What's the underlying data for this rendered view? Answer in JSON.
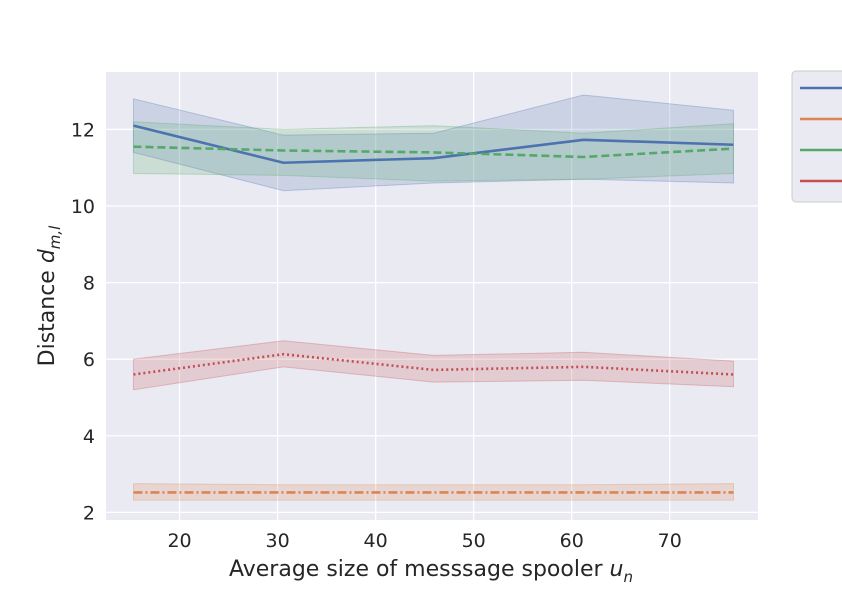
{
  "chart_data": {
    "type": "line",
    "title": "",
    "xlabel": "Average size of messsage spooler",
    "xlabel_math": "u",
    "xlabel_math_sub": "n",
    "ylabel": "Distance",
    "ylabel_math": "d",
    "ylabel_math_sub": "m,l",
    "xlim": [
      12.5,
      79
    ],
    "ylim": [
      1.8,
      13.5
    ],
    "xticks": [
      20,
      30,
      40,
      50,
      60,
      70
    ],
    "yticks": [
      2,
      4,
      6,
      8,
      10,
      12
    ],
    "grid": true,
    "legend_position": "outside-top-right",
    "x": [
      15.3,
      30.6,
      45.9,
      61.2,
      76.5
    ],
    "series": [
      {
        "color": "#4c72b0",
        "dash": "solid",
        "values": [
          12.1,
          11.13,
          11.25,
          11.73,
          11.6
        ],
        "lower": [
          11.4,
          10.4,
          10.6,
          10.7,
          10.6
        ],
        "upper": [
          12.8,
          11.85,
          11.9,
          12.9,
          12.5
        ]
      },
      {
        "color": "#dd8452",
        "dash": "dashdot",
        "values": [
          2.52,
          2.52,
          2.52,
          2.52,
          2.52
        ],
        "lower": [
          2.32,
          2.32,
          2.32,
          2.32,
          2.32
        ],
        "upper": [
          2.75,
          2.72,
          2.72,
          2.72,
          2.75
        ]
      },
      {
        "color": "#55a868",
        "dash": "dashed",
        "values": [
          11.55,
          11.45,
          11.4,
          11.28,
          11.5
        ],
        "lower": [
          10.85,
          10.8,
          10.65,
          10.7,
          10.85
        ],
        "upper": [
          12.2,
          12.0,
          12.1,
          11.9,
          12.15
        ]
      },
      {
        "color": "#c44e52",
        "dash": "dotted",
        "values": [
          5.6,
          6.13,
          5.72,
          5.8,
          5.6
        ],
        "lower": [
          5.2,
          5.8,
          5.4,
          5.45,
          5.28
        ],
        "upper": [
          6.0,
          6.48,
          6.1,
          6.18,
          5.95
        ]
      }
    ]
  }
}
